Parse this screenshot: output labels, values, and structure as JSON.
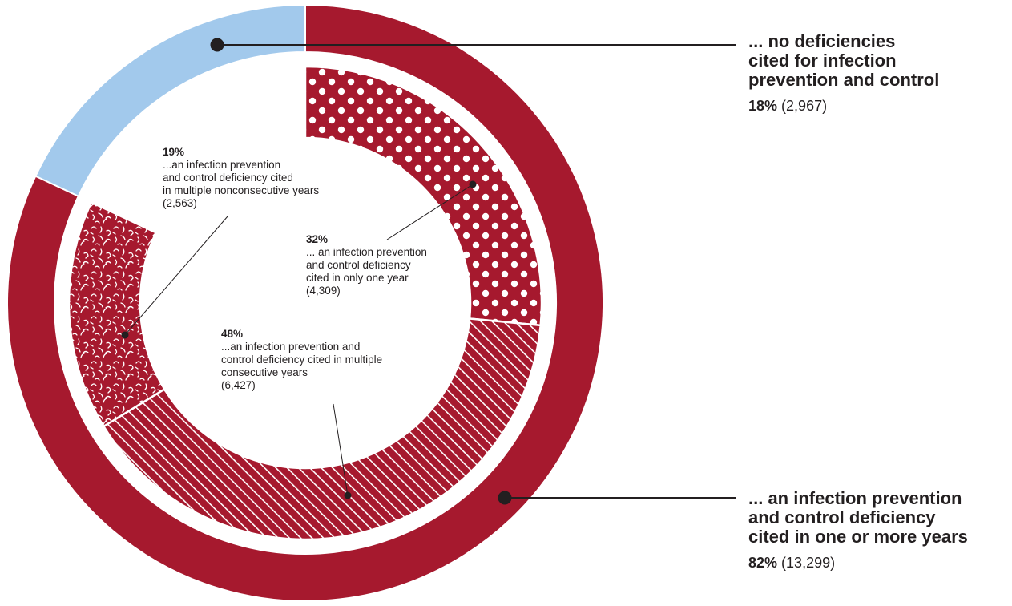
{
  "chart_data": [
    {
      "type": "pie",
      "variant": "donut-outer",
      "slices": [
        {
          "label": "... no deficiencies cited for infection prevention and control",
          "percent": 18,
          "count": "2,967",
          "color": "#a2c9ec"
        },
        {
          "label": "... an infection prevention and control deficiency cited in one or more years",
          "percent": 82,
          "count": "13,299",
          "color": "#a6192e"
        }
      ]
    },
    {
      "type": "pie",
      "variant": "donut-inner",
      "slices": [
        {
          "label": "... an infection prevention and control deficiency cited in only one year",
          "percent": 32,
          "count": "4,309",
          "pattern": "dots"
        },
        {
          "label": "...an infection prevention and control deficiency cited in multiple consecutive years",
          "percent": 48,
          "count": "6,427",
          "pattern": "hatch"
        },
        {
          "label": "...an infection prevention and control deficiency cited in multiple nonconsecutive years",
          "percent": 19,
          "count": "2,563",
          "pattern": "squiggle"
        }
      ]
    }
  ],
  "labels": {
    "none": {
      "head": "... no deficiencies\ncited for infection\nprevention and control",
      "pct": "18%",
      "cnt": "(2,967)"
    },
    "any": {
      "head": "... an infection prevention\nand control deficiency\ncited in one or more years",
      "pct": "82%",
      "cnt": "(13,299)"
    },
    "one_year": {
      "pct": "32%",
      "desc": "... an infection prevention\nand control deficiency\ncited in only one year",
      "cnt": "(4,309)"
    },
    "consecutive": {
      "pct": "48%",
      "desc": "...an infection prevention and\ncontrol deficiency cited in multiple\nconsecutive years",
      "cnt": "(6,427)"
    },
    "nonconsecutive": {
      "pct": "19%",
      "desc": "...an infection prevention\nand control deficiency cited\nin multiple nonconsecutive years",
      "cnt": "(2,563)"
    }
  },
  "colors": {
    "accent": "#a6192e",
    "light_blue": "#a2c9ec",
    "ink": "#231f20"
  }
}
